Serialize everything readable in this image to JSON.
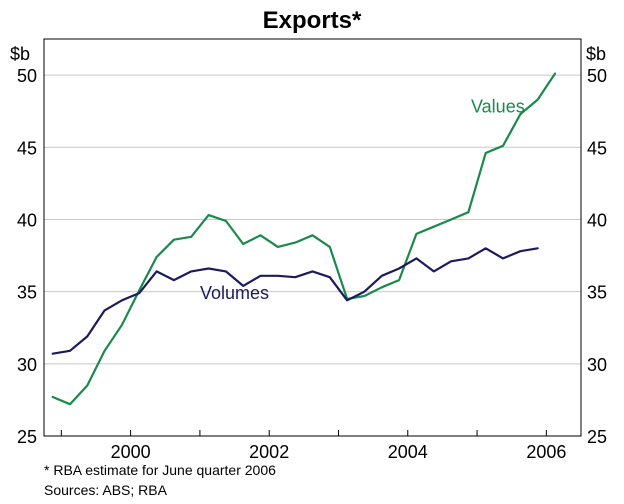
{
  "chart_data": {
    "type": "line",
    "title": "Exports*",
    "y_unit_left": "$b",
    "y_unit_right": "$b",
    "ylim": [
      25,
      52.5
    ],
    "yticks": [
      25,
      30,
      35,
      40,
      45,
      50
    ],
    "xlim": [
      1998.75,
      2006.5
    ],
    "xticks": [
      1999,
      2000,
      2001,
      2002,
      2003,
      2004,
      2005,
      2006
    ],
    "xtick_labels": [
      {
        "x": 2000,
        "label": "2000"
      },
      {
        "x": 2002,
        "label": "2002"
      },
      {
        "x": 2004,
        "label": "2004"
      },
      {
        "x": 2006,
        "label": "2006"
      }
    ],
    "grid": "horizontal",
    "x": [
      1998.875,
      1999.125,
      1999.375,
      1999.625,
      1999.875,
      2000.125,
      2000.375,
      2000.625,
      2000.875,
      2001.125,
      2001.375,
      2001.625,
      2001.875,
      2002.125,
      2002.375,
      2002.625,
      2002.875,
      2003.125,
      2003.375,
      2003.625,
      2003.875,
      2004.125,
      2004.375,
      2004.625,
      2004.875,
      2005.125,
      2005.375,
      2005.625,
      2005.875,
      2006.125,
      2006.375
    ],
    "series": [
      {
        "name": "Values",
        "label_pos": [
          2005.3,
          47.4
        ],
        "color": "#1a8a4a",
        "values": [
          27.7,
          27.2,
          28.5,
          30.9,
          32.7,
          35.1,
          37.4,
          38.6,
          38.8,
          40.3,
          39.9,
          38.3,
          38.9,
          38.1,
          38.4,
          38.9,
          38.1,
          34.5,
          34.7,
          35.3,
          35.8,
          39.0,
          39.5,
          40.0,
          40.5,
          44.6,
          45.1,
          47.3,
          48.3,
          50.1,
          null
        ]
      },
      {
        "name": "Volumes",
        "label_pos": [
          2001.5,
          34.5
        ],
        "color": "#1b1b5e",
        "values": [
          30.7,
          30.9,
          31.9,
          33.7,
          34.4,
          34.9,
          36.4,
          35.8,
          36.4,
          36.6,
          36.4,
          35.4,
          36.1,
          36.1,
          36.0,
          36.4,
          36.0,
          34.4,
          35.0,
          36.1,
          36.6,
          37.3,
          36.4,
          37.1,
          37.3,
          38.0,
          37.3,
          37.8,
          38.0,
          null,
          null
        ]
      }
    ],
    "footnote": "*   RBA estimate for June quarter 2006",
    "sources": "Sources: ABS; RBA"
  }
}
